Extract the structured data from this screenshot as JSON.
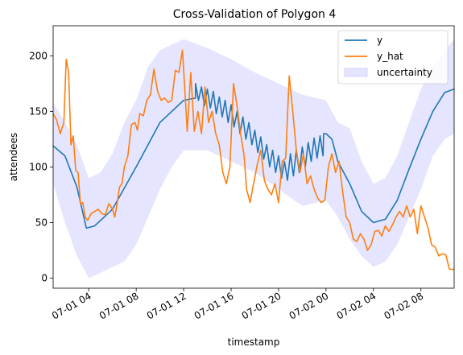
{
  "chart_data": {
    "type": "line",
    "title": "Cross-Validation of Polygon 4",
    "xlabel": "timestamp",
    "ylabel": "attendees",
    "x_range_hours": [
      1.0,
      34.8
    ],
    "ylim": [
      -9,
      227
    ],
    "x_ticks": [
      {
        "hour": 4,
        "label": "07-01 04"
      },
      {
        "hour": 8,
        "label": "07-01 08"
      },
      {
        "hour": 12,
        "label": "07-01 12"
      },
      {
        "hour": 16,
        "label": "07-01 16"
      },
      {
        "hour": 20,
        "label": "07-01 20"
      },
      {
        "hour": 24,
        "label": "07-02 00"
      },
      {
        "hour": 28,
        "label": "07-02 04"
      },
      {
        "hour": 32,
        "label": "07-02 08"
      }
    ],
    "y_ticks": [
      0,
      50,
      100,
      150,
      200
    ],
    "legend": {
      "position": "top-right",
      "entries": [
        {
          "label": "y",
          "color": "#1f77b4",
          "kind": "line"
        },
        {
          "label": "y_hat",
          "color": "#ff7f0e",
          "kind": "line"
        },
        {
          "label": "uncertainty",
          "color": "#7f7fff",
          "kind": "patch"
        }
      ]
    },
    "series": [
      {
        "label": "y",
        "color": "#1f77b4",
        "points": [
          [
            1.0,
            119
          ],
          [
            2.0,
            110
          ],
          [
            3.0,
            82
          ],
          [
            3.8,
            45
          ],
          [
            4.5,
            47
          ],
          [
            6.0,
            62
          ],
          [
            8.0,
            100
          ],
          [
            10.0,
            140
          ],
          [
            12.0,
            160
          ],
          [
            13.0,
            162
          ],
          [
            13.0,
            175
          ],
          [
            13.25,
            160
          ],
          [
            13.5,
            172
          ],
          [
            13.75,
            155
          ],
          [
            14.0,
            170
          ],
          [
            14.25,
            153
          ],
          [
            14.5,
            168
          ],
          [
            14.75,
            148
          ],
          [
            15.0,
            163
          ],
          [
            15.25,
            145
          ],
          [
            15.5,
            160
          ],
          [
            15.75,
            140
          ],
          [
            16.0,
            156
          ],
          [
            16.25,
            136
          ],
          [
            16.5,
            150
          ],
          [
            16.75,
            130
          ],
          [
            17.0,
            145
          ],
          [
            17.25,
            125
          ],
          [
            17.5,
            140
          ],
          [
            17.75,
            120
          ],
          [
            18.0,
            133
          ],
          [
            18.25,
            113
          ],
          [
            18.5,
            127
          ],
          [
            18.75,
            107
          ],
          [
            19.0,
            120
          ],
          [
            19.25,
            100
          ],
          [
            19.5,
            115
          ],
          [
            19.75,
            95
          ],
          [
            20.0,
            110
          ],
          [
            20.25,
            90
          ],
          [
            20.5,
            105
          ],
          [
            20.75,
            88
          ],
          [
            21.0,
            112
          ],
          [
            21.25,
            92
          ],
          [
            21.5,
            115
          ],
          [
            21.75,
            95
          ],
          [
            22.0,
            118
          ],
          [
            22.25,
            100
          ],
          [
            22.5,
            122
          ],
          [
            22.75,
            105
          ],
          [
            23.0,
            126
          ],
          [
            23.25,
            108
          ],
          [
            23.5,
            128
          ],
          [
            23.75,
            110
          ],
          [
            23.8,
            130
          ],
          [
            24.0,
            130
          ],
          [
            24.5,
            125
          ],
          [
            25.0,
            105
          ],
          [
            26.0,
            85
          ],
          [
            27.0,
            60
          ],
          [
            28.0,
            50
          ],
          [
            29.0,
            53
          ],
          [
            30.0,
            70
          ],
          [
            31.0,
            98
          ],
          [
            32.0,
            125
          ],
          [
            33.0,
            150
          ],
          [
            34.0,
            167
          ],
          [
            34.8,
            170
          ]
        ]
      },
      {
        "label": "y_hat",
        "color": "#ff7f0e",
        "points": [
          [
            1.0,
            148
          ],
          [
            1.3,
            142
          ],
          [
            1.6,
            130
          ],
          [
            1.9,
            140
          ],
          [
            2.1,
            197
          ],
          [
            2.3,
            185
          ],
          [
            2.5,
            120
          ],
          [
            2.7,
            128
          ],
          [
            2.9,
            97
          ],
          [
            3.1,
            95
          ],
          [
            3.3,
            67
          ],
          [
            3.5,
            68
          ],
          [
            3.7,
            55
          ],
          [
            3.9,
            52
          ],
          [
            4.2,
            58
          ],
          [
            4.5,
            60
          ],
          [
            4.8,
            62
          ],
          [
            5.1,
            58
          ],
          [
            5.4,
            57
          ],
          [
            5.7,
            67
          ],
          [
            6.0,
            62
          ],
          [
            6.2,
            55
          ],
          [
            6.4,
            68
          ],
          [
            6.6,
            82
          ],
          [
            6.8,
            85
          ],
          [
            7.0,
            100
          ],
          [
            7.3,
            110
          ],
          [
            7.6,
            138
          ],
          [
            7.9,
            140
          ],
          [
            8.1,
            133
          ],
          [
            8.3,
            148
          ],
          [
            8.6,
            146
          ],
          [
            8.9,
            160
          ],
          [
            9.2,
            165
          ],
          [
            9.5,
            188
          ],
          [
            9.8,
            168
          ],
          [
            10.1,
            160
          ],
          [
            10.4,
            162
          ],
          [
            10.7,
            158
          ],
          [
            11.0,
            160
          ],
          [
            11.3,
            187
          ],
          [
            11.6,
            185
          ],
          [
            11.9,
            205
          ],
          [
            12.1,
            170
          ],
          [
            12.3,
            132
          ],
          [
            12.6,
            185
          ],
          [
            12.9,
            132
          ],
          [
            13.2,
            150
          ],
          [
            13.5,
            130
          ],
          [
            13.8,
            172
          ],
          [
            14.1,
            140
          ],
          [
            14.4,
            150
          ],
          [
            14.7,
            130
          ],
          [
            15.0,
            120
          ],
          [
            15.3,
            95
          ],
          [
            15.6,
            85
          ],
          [
            15.9,
            100
          ],
          [
            16.2,
            175
          ],
          [
            16.5,
            155
          ],
          [
            16.8,
            130
          ],
          [
            17.1,
            110
          ],
          [
            17.3,
            80
          ],
          [
            17.6,
            68
          ],
          [
            17.9,
            85
          ],
          [
            18.2,
            102
          ],
          [
            18.5,
            115
          ],
          [
            18.8,
            88
          ],
          [
            19.1,
            80
          ],
          [
            19.4,
            75
          ],
          [
            19.7,
            85
          ],
          [
            20.0,
            68
          ],
          [
            20.3,
            105
          ],
          [
            20.6,
            108
          ],
          [
            20.9,
            182
          ],
          [
            21.2,
            150
          ],
          [
            21.5,
            115
          ],
          [
            21.8,
            95
          ],
          [
            22.1,
            112
          ],
          [
            22.4,
            85
          ],
          [
            22.7,
            92
          ],
          [
            23.0,
            80
          ],
          [
            23.3,
            72
          ],
          [
            23.6,
            68
          ],
          [
            23.9,
            70
          ],
          [
            24.2,
            100
          ],
          [
            24.5,
            112
          ],
          [
            24.8,
            95
          ],
          [
            25.1,
            105
          ],
          [
            25.4,
            78
          ],
          [
            25.7,
            55
          ],
          [
            26.0,
            50
          ],
          [
            26.3,
            35
          ],
          [
            26.6,
            33
          ],
          [
            26.9,
            40
          ],
          [
            27.2,
            35
          ],
          [
            27.5,
            25
          ],
          [
            27.8,
            30
          ],
          [
            28.1,
            42
          ],
          [
            28.4,
            43
          ],
          [
            28.7,
            38
          ],
          [
            29.0,
            47
          ],
          [
            29.3,
            42
          ],
          [
            29.6,
            48
          ],
          [
            29.9,
            55
          ],
          [
            30.2,
            60
          ],
          [
            30.5,
            55
          ],
          [
            30.8,
            65
          ],
          [
            31.1,
            55
          ],
          [
            31.4,
            62
          ],
          [
            31.7,
            40
          ],
          [
            32.0,
            65
          ],
          [
            32.3,
            55
          ],
          [
            32.6,
            45
          ],
          [
            32.9,
            30
          ],
          [
            33.2,
            28
          ],
          [
            33.5,
            20
          ],
          [
            33.8,
            22
          ],
          [
            34.1,
            21
          ],
          [
            34.4,
            8
          ],
          [
            34.8,
            8
          ]
        ]
      }
    ],
    "uncertainty_band": {
      "label": "uncertainty",
      "upper": [
        [
          1.0,
          158
        ],
        [
          2.0,
          140
        ],
        [
          3.0,
          120
        ],
        [
          4.0,
          90
        ],
        [
          5.0,
          95
        ],
        [
          6.0,
          112
        ],
        [
          7.0,
          140
        ],
        [
          8.0,
          160
        ],
        [
          9.0,
          190
        ],
        [
          10.0,
          205
        ],
        [
          11.0,
          210
        ],
        [
          12.0,
          215
        ],
        [
          14.0,
          207
        ],
        [
          16.0,
          197
        ],
        [
          18.0,
          185
        ],
        [
          20.0,
          175
        ],
        [
          22.0,
          165
        ],
        [
          24.0,
          160
        ],
        [
          25.0,
          140
        ],
        [
          26.0,
          135
        ],
        [
          27.0,
          105
        ],
        [
          28.0,
          85
        ],
        [
          29.0,
          90
        ],
        [
          30.0,
          110
        ],
        [
          31.0,
          140
        ],
        [
          32.0,
          170
        ],
        [
          33.0,
          190
        ],
        [
          34.0,
          205
        ],
        [
          34.8,
          215
        ]
      ],
      "lower": [
        [
          34.8,
          130
        ],
        [
          34.0,
          125
        ],
        [
          33.0,
          110
        ],
        [
          32.0,
          80
        ],
        [
          31.0,
          55
        ],
        [
          30.0,
          30
        ],
        [
          29.0,
          15
        ],
        [
          28.0,
          10
        ],
        [
          27.0,
          20
        ],
        [
          26.0,
          35
        ],
        [
          25.0,
          55
        ],
        [
          24.0,
          70
        ],
        [
          22.0,
          65
        ],
        [
          20.0,
          80
        ],
        [
          18.0,
          95
        ],
        [
          16.0,
          105
        ],
        [
          14.0,
          115
        ],
        [
          12.0,
          115
        ],
        [
          11.0,
          100
        ],
        [
          10.0,
          80
        ],
        [
          9.0,
          55
        ],
        [
          8.0,
          30
        ],
        [
          7.0,
          15
        ],
        [
          6.0,
          10
        ],
        [
          5.0,
          5
        ],
        [
          4.0,
          0
        ],
        [
          3.0,
          20
        ],
        [
          2.0,
          50
        ],
        [
          1.0,
          85
        ]
      ]
    }
  }
}
